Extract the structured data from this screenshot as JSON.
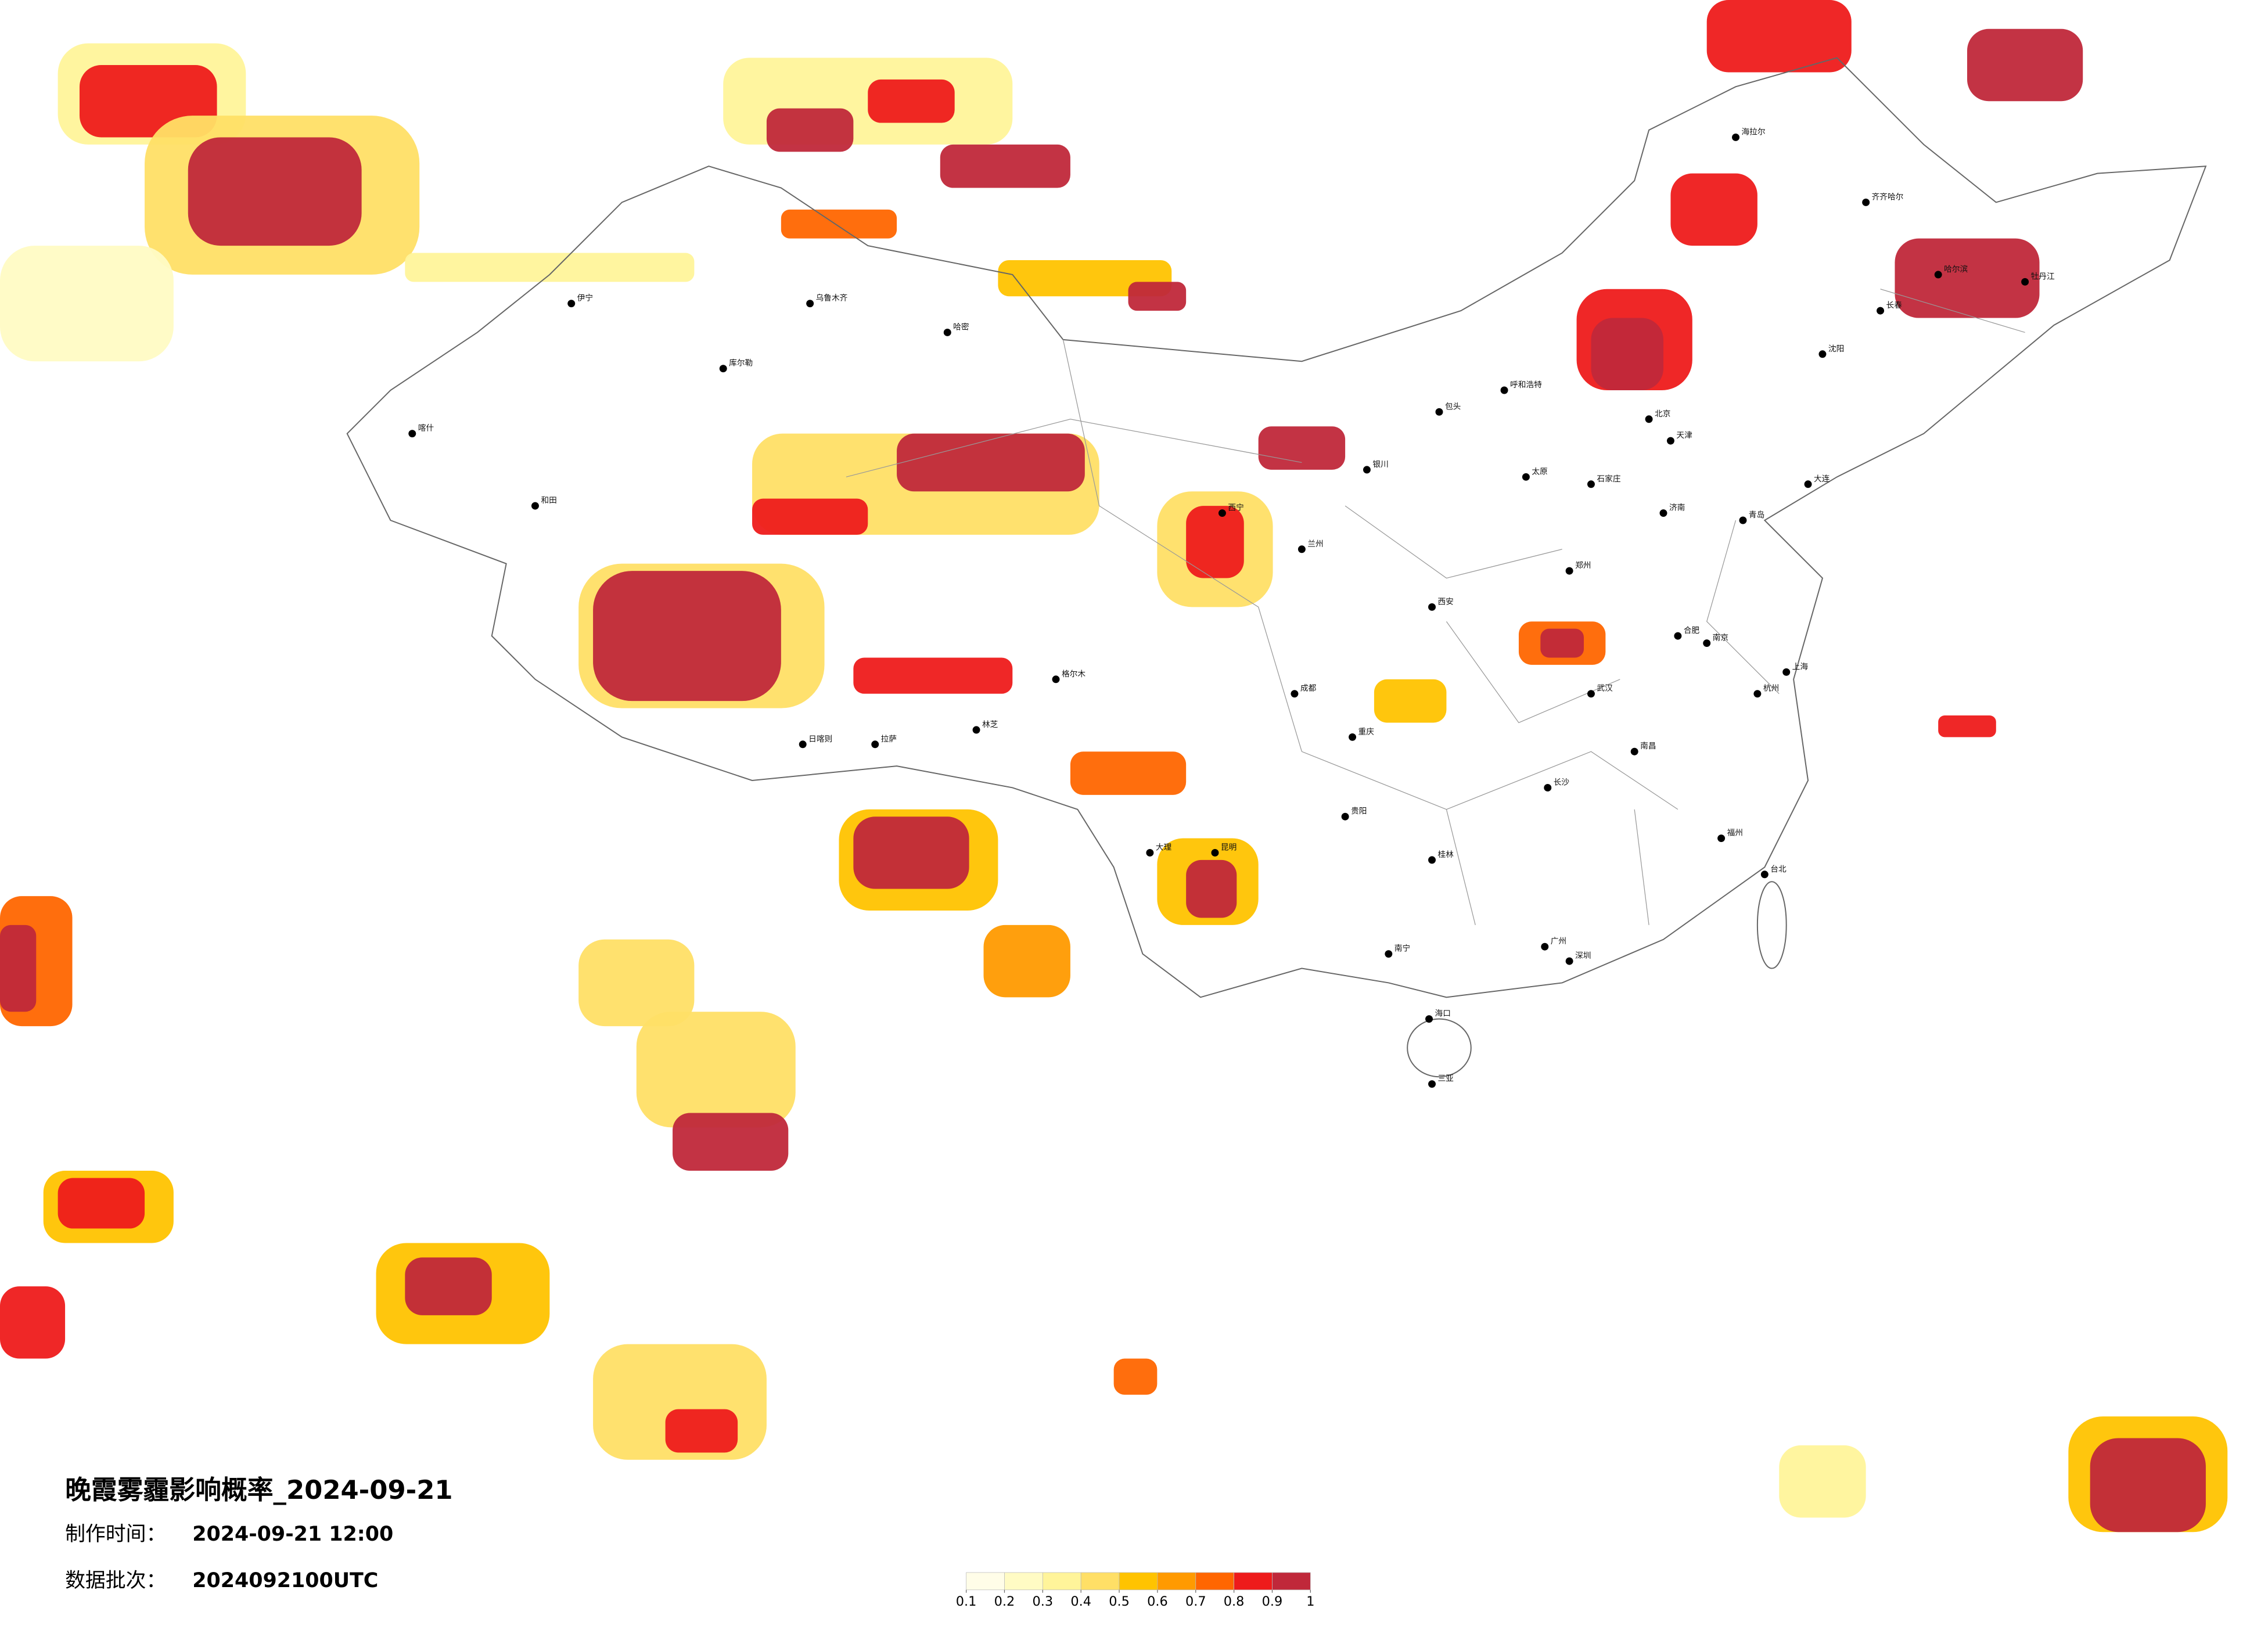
{
  "title": "晚霞雾霾影响概率_2024-09-21",
  "production_time": {
    "label": "制作时间：",
    "value": "2024-09-21 12:00"
  },
  "data_batch": {
    "label": "数据批次：",
    "value": "2024092100UTC"
  },
  "colorbar": {
    "ticks": [
      0.1,
      0.2,
      0.3,
      0.4,
      0.5,
      0.6,
      0.7,
      0.8,
      0.9,
      1
    ],
    "colors": [
      "#fffde8",
      "#fffbc4",
      "#fff49a",
      "#ffdf66",
      "#ffc300",
      "#ff9a00",
      "#ff6600",
      "#ee1b1b",
      "#c0283a"
    ]
  },
  "cities": [
    "北京",
    "天津",
    "上海",
    "广州",
    "深圳",
    "重庆",
    "成都",
    "西安",
    "武汉",
    "郑州",
    "长沙",
    "南京",
    "杭州",
    "济南",
    "石家庄",
    "太原",
    "呼和浩特",
    "沈阳",
    "长春",
    "哈尔滨",
    "海拉尔",
    "兰州",
    "西宁",
    "银川",
    "乌鲁木齐",
    "拉萨",
    "昆明",
    "贵阳",
    "南宁",
    "海口",
    "福州",
    "南昌",
    "合肥",
    "台北",
    "和田",
    "喀什",
    "伊宁",
    "库尔勒",
    "哈密",
    "格尔木",
    "日喀则",
    "林芝",
    "大理",
    "桂林",
    "三亚",
    "青岛",
    "大连",
    "齐齐哈尔",
    "牡丹江",
    "包头"
  ]
}
